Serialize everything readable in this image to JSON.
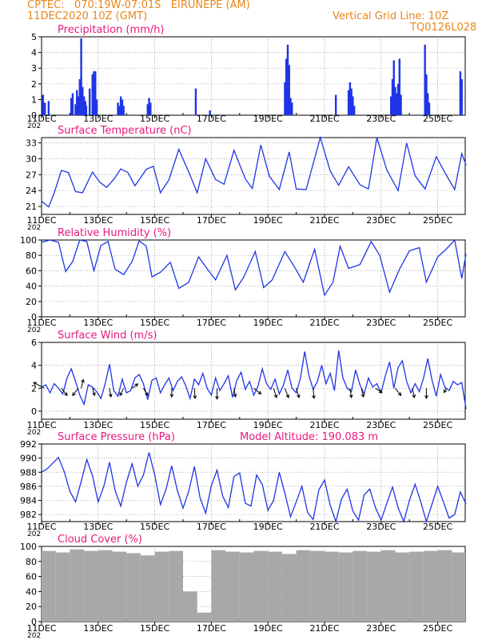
{
  "header": {
    "line1": "CPTEC:   070:19W-07:01S   EIRUNEPE (AM)",
    "line2": "11DEC2020 10Z (GMT)",
    "grid_note": "Vertical Grid Line: 10Z",
    "code": "TQ0126L028"
  },
  "colors": {
    "header": "#e8861a",
    "title": "#e6197d",
    "series": "#1f35e6",
    "cloud": "#a8a8a8",
    "arrow": "#000000"
  },
  "x_ticks": [
    "11DEC",
    "13DEC",
    "15DEC",
    "17DEC",
    "19DEC",
    "21DEC",
    "23DEC",
    "25DEC"
  ],
  "x_axis_stub": "202",
  "chart_data": [
    {
      "type": "bar",
      "title": "Precipitation (mm/h)",
      "ylim": [
        0,
        5
      ],
      "yticks": [
        0,
        1,
        2,
        3,
        4,
        5
      ],
      "x_days": [
        0,
        15
      ],
      "x": [
        0.05,
        0.12,
        0.25,
        1.05,
        1.1,
        1.2,
        1.25,
        1.3,
        1.35,
        1.4,
        1.45,
        1.5,
        1.55,
        1.58,
        1.7,
        1.8,
        1.85,
        1.9,
        1.95,
        2.7,
        2.75,
        2.8,
        2.85,
        2.9,
        3.75,
        3.8,
        3.85,
        5.45,
        5.95,
        8.6,
        8.65,
        8.7,
        8.75,
        8.8,
        8.85,
        10.4,
        10.85,
        10.9,
        10.95,
        11.0,
        11.05,
        12.35,
        12.4,
        12.45,
        12.5,
        12.55,
        12.6,
        12.65,
        12.7,
        13.55,
        13.6,
        13.65,
        13.7,
        14.8,
        14.85
      ],
      "values": [
        1.3,
        0.8,
        0.9,
        1.1,
        1.4,
        0.7,
        1.6,
        1.2,
        2.3,
        4.9,
        1.8,
        1.2,
        0.9,
        0.6,
        1.7,
        2.6,
        2.8,
        2.8,
        1.0,
        0.8,
        0.6,
        1.2,
        1.0,
        0.6,
        0.7,
        1.1,
        0.8,
        1.7,
        0.3,
        2.1,
        3.6,
        4.5,
        3.2,
        1.1,
        0.8,
        1.3,
        1.6,
        2.1,
        1.7,
        1.2,
        0.6,
        1.2,
        2.3,
        3.5,
        1.8,
        1.4,
        2.0,
        3.6,
        1.3,
        4.5,
        2.6,
        1.4,
        0.8,
        2.8,
        2.3
      ]
    },
    {
      "type": "line",
      "title": "Surface Temperature (nC)",
      "ylim": [
        19.5,
        34
      ],
      "yticks": [
        21,
        24,
        27,
        30,
        33
      ],
      "x_days": [
        0,
        15
      ],
      "x": [
        0,
        0.25,
        0.45,
        0.7,
        0.95,
        1.2,
        1.45,
        1.8,
        2.05,
        2.3,
        2.55,
        2.8,
        3.05,
        3.3,
        3.7,
        3.95,
        4.2,
        4.5,
        4.85,
        5.25,
        5.5,
        5.8,
        6.15,
        6.45,
        6.8,
        7.2,
        7.45,
        7.75,
        8.05,
        8.4,
        8.75,
        9.0,
        9.35,
        9.85,
        10.2,
        10.5,
        10.85,
        11.25,
        11.55,
        11.85,
        12.2,
        12.6,
        12.9,
        13.2,
        13.55,
        13.95,
        14.25,
        14.6,
        14.85,
        15.0
      ],
      "values": [
        22.0,
        20.9,
        23.6,
        27.8,
        27.4,
        23.8,
        23.6,
        27.5,
        25.6,
        24.6,
        26.1,
        28.1,
        27.4,
        24.9,
        28.0,
        28.6,
        23.6,
        26.0,
        31.8,
        26.9,
        23.6,
        30.0,
        26.1,
        25.2,
        31.6,
        26.2,
        24.4,
        32.6,
        26.7,
        24.2,
        31.3,
        24.3,
        24.2,
        34.2,
        27.7,
        25.0,
        28.5,
        25.1,
        24.3,
        34.1,
        27.9,
        24.0,
        33.0,
        26.8,
        24.3,
        30.4,
        27.4,
        24.2,
        31.0,
        28.8
      ]
    },
    {
      "type": "line",
      "title": "Relative Humidity (%)",
      "ylim": [
        0,
        100
      ],
      "yticks": [
        0,
        20,
        40,
        60,
        80,
        100
      ],
      "x_days": [
        0,
        15
      ],
      "x": [
        0,
        0.3,
        0.6,
        0.85,
        1.1,
        1.35,
        1.6,
        1.85,
        2.1,
        2.35,
        2.6,
        2.9,
        3.2,
        3.45,
        3.7,
        3.9,
        4.2,
        4.55,
        4.85,
        5.2,
        5.55,
        5.9,
        6.15,
        6.55,
        6.85,
        7.15,
        7.55,
        7.85,
        8.15,
        8.6,
        9.0,
        9.25,
        9.65,
        10.0,
        10.3,
        10.55,
        10.85,
        11.25,
        11.65,
        11.95,
        12.3,
        12.65,
        13.0,
        13.35,
        13.6,
        14.0,
        14.3,
        14.6,
        14.85,
        15.0
      ],
      "values": [
        97,
        100,
        97,
        59,
        72,
        100,
        98,
        60,
        93,
        98,
        62,
        55,
        72,
        99,
        92,
        52,
        58,
        71,
        37,
        45,
        78,
        60,
        48,
        80,
        35,
        52,
        85,
        38,
        48,
        85,
        61,
        45,
        88,
        28,
        45,
        92,
        63,
        68,
        98,
        80,
        32,
        62,
        86,
        90,
        45,
        78,
        88,
        100,
        50,
        82
      ]
    },
    {
      "type": "line",
      "title": "Surface Wind (m/s)",
      "ylim": [
        -0.7,
        6
      ],
      "yticks": [
        0,
        2,
        4,
        6
      ],
      "x_days": [
        0,
        15
      ],
      "x": [
        0,
        0.15,
        0.3,
        0.45,
        0.6,
        0.75,
        0.9,
        1.05,
        1.2,
        1.35,
        1.5,
        1.65,
        1.8,
        1.95,
        2.1,
        2.25,
        2.4,
        2.55,
        2.7,
        2.85,
        3.0,
        3.15,
        3.3,
        3.45,
        3.6,
        3.75,
        3.9,
        4.05,
        4.2,
        4.35,
        4.5,
        4.65,
        4.8,
        4.95,
        5.1,
        5.25,
        5.4,
        5.55,
        5.7,
        5.85,
        6.0,
        6.15,
        6.3,
        6.45,
        6.6,
        6.75,
        6.9,
        7.05,
        7.2,
        7.35,
        7.5,
        7.65,
        7.8,
        7.95,
        8.1,
        8.25,
        8.4,
        8.55,
        8.7,
        8.85,
        9.0,
        9.15,
        9.3,
        9.45,
        9.6,
        9.75,
        9.9,
        10.05,
        10.2,
        10.35,
        10.5,
        10.65,
        10.8,
        10.95,
        11.1,
        11.25,
        11.4,
        11.55,
        11.7,
        11.85,
        12.0,
        12.15,
        12.3,
        12.45,
        12.6,
        12.75,
        12.9,
        13.05,
        13.2,
        13.35,
        13.5,
        13.65,
        13.8,
        13.95,
        14.1,
        14.25,
        14.4,
        14.55,
        14.7,
        14.85,
        15.0
      ],
      "values": [
        2.1,
        2.3,
        1.6,
        2.4,
        2.0,
        1.5,
        2.9,
        3.7,
        2.6,
        1.4,
        0.6,
        2.3,
        2.1,
        1.7,
        1.1,
        2.4,
        4.1,
        1.8,
        1.3,
        2.8,
        1.6,
        1.8,
        2.9,
        3.2,
        2.4,
        1.0,
        2.7,
        2.9,
        1.6,
        2.3,
        2.9,
        1.8,
        2.6,
        3.0,
        2.2,
        1.1,
        2.8,
        2.3,
        3.3,
        2.0,
        1.4,
        2.9,
        1.8,
        2.4,
        3.1,
        1.2,
        2.7,
        3.4,
        1.9,
        2.6,
        1.4,
        2.2,
        3.7,
        2.4,
        1.9,
        2.8,
        1.5,
        2.3,
        3.6,
        2.0,
        1.6,
        2.9,
        5.2,
        3.1,
        1.9,
        2.6,
        4.0,
        2.4,
        3.3,
        1.8,
        5.3,
        2.9,
        2.0,
        1.7,
        3.6,
        2.3,
        1.5,
        2.9,
        2.1,
        2.4,
        1.6,
        3.1,
        4.3,
        2.0,
        3.8,
        4.4,
        2.6,
        1.6,
        2.4,
        1.7,
        2.9,
        4.6,
        2.7,
        1.3,
        3.2,
        2.1,
        1.8,
        2.6,
        2.3,
        2.5,
        0.2
      ],
      "arrows": [
        {
          "day": 0.1,
          "u": -1.5,
          "v": 0.8
        },
        {
          "day": 0.7,
          "u": 0.8,
          "v": -1.0
        },
        {
          "day": 1.3,
          "u": -0.8,
          "v": -1.0
        },
        {
          "day": 1.4,
          "u": 0.3,
          "v": 1.2
        },
        {
          "day": 1.8,
          "u": 0.3,
          "v": -1.0
        },
        {
          "day": 2.4,
          "u": 0.2,
          "v": -1.2
        },
        {
          "day": 2.9,
          "u": -0.5,
          "v": -1.0
        },
        {
          "day": 3.2,
          "u": 0.8,
          "v": 0.6
        },
        {
          "day": 3.6,
          "u": 0.6,
          "v": -1.0
        },
        {
          "day": 4.6,
          "u": 0.0,
          "v": -1.2
        },
        {
          "day": 5.4,
          "u": 0.1,
          "v": -1.4
        },
        {
          "day": 6.2,
          "u": 0.0,
          "v": -1.5
        },
        {
          "day": 6.8,
          "u": 0.2,
          "v": -1.2
        },
        {
          "day": 7.5,
          "u": 1.0,
          "v": -0.8
        },
        {
          "day": 8.2,
          "u": 0.4,
          "v": -1.3
        },
        {
          "day": 8.6,
          "u": 0.5,
          "v": -1.3
        },
        {
          "day": 9.0,
          "u": 0.4,
          "v": -1.3
        },
        {
          "day": 9.6,
          "u": 0.1,
          "v": -1.4
        },
        {
          "day": 10.9,
          "u": 0.2,
          "v": -1.3
        },
        {
          "day": 11.3,
          "u": 0.3,
          "v": -1.2
        },
        {
          "day": 11.8,
          "u": 0.9,
          "v": -0.6
        },
        {
          "day": 12.5,
          "u": 0.8,
          "v": -1.0
        },
        {
          "day": 13.1,
          "u": 0.3,
          "v": -1.3
        },
        {
          "day": 13.6,
          "u": 0.0,
          "v": -1.4
        },
        {
          "day": 14.3,
          "u": -0.3,
          "v": -0.6
        }
      ]
    },
    {
      "type": "line",
      "title": "Surface Pressure (hPa)",
      "annotation": "Model Altitude: 190.083 m",
      "ylim": [
        981,
        992
      ],
      "yticks": [
        982,
        984,
        986,
        988,
        990,
        992
      ],
      "x_days": [
        0,
        15
      ],
      "x": [
        0,
        0.2,
        0.4,
        0.6,
        0.8,
        1.0,
        1.2,
        1.4,
        1.6,
        1.8,
        2.0,
        2.2,
        2.4,
        2.6,
        2.8,
        3.0,
        3.2,
        3.4,
        3.6,
        3.8,
        4.0,
        4.2,
        4.4,
        4.6,
        4.8,
        5.0,
        5.2,
        5.4,
        5.6,
        5.8,
        6.0,
        6.2,
        6.4,
        6.6,
        6.8,
        7.0,
        7.2,
        7.4,
        7.6,
        7.8,
        8.0,
        8.2,
        8.4,
        8.6,
        8.8,
        9.0,
        9.2,
        9.4,
        9.6,
        9.8,
        10.0,
        10.2,
        10.4,
        10.6,
        10.8,
        11.0,
        11.2,
        11.4,
        11.6,
        11.8,
        12.0,
        12.2,
        12.4,
        12.6,
        12.8,
        13.0,
        13.2,
        13.4,
        13.6,
        13.8,
        14.0,
        14.2,
        14.4,
        14.6,
        14.8,
        15.0
      ],
      "values": [
        988.0,
        988.5,
        989.3,
        990.1,
        988.1,
        985.3,
        983.8,
        986.7,
        989.8,
        987.5,
        983.8,
        986.0,
        989.4,
        985.4,
        983.2,
        986.6,
        989.2,
        986.0,
        987.6,
        990.8,
        987.6,
        983.4,
        985.6,
        988.9,
        985.4,
        982.9,
        985.3,
        988.8,
        984.4,
        982.2,
        986.1,
        988.3,
        984.6,
        983.0,
        987.4,
        987.9,
        983.6,
        983.2,
        987.6,
        986.3,
        982.6,
        984.0,
        988.0,
        985.0,
        981.7,
        983.8,
        986.0,
        982.3,
        981.3,
        985.5,
        986.9,
        983.3,
        981.0,
        984.2,
        985.6,
        982.5,
        981.2,
        984.8,
        985.6,
        983.0,
        981.2,
        983.6,
        985.9,
        983.0,
        980.8,
        984.0,
        986.3,
        983.8,
        980.8,
        983.5,
        986.0,
        983.8,
        981.5,
        982.0,
        985.2,
        983.5
      ]
    },
    {
      "type": "bar",
      "title": "Cloud Cover (%)",
      "ylim": [
        0,
        100
      ],
      "yticks": [
        0,
        20,
        40,
        60,
        80,
        100
      ],
      "x_days": [
        0,
        15
      ],
      "x": [
        0,
        0.5,
        1.0,
        1.5,
        2.0,
        2.5,
        3.0,
        3.5,
        4.0,
        4.5,
        5.0,
        5.5,
        6.0,
        6.5,
        7.0,
        7.5,
        8.0,
        8.5,
        9.0,
        9.5,
        10.0,
        10.5,
        11.0,
        11.5,
        12.0,
        12.5,
        13.0,
        13.5,
        14.0,
        14.5
      ],
      "values": [
        94,
        92,
        96,
        94,
        95,
        93,
        91,
        88,
        93,
        94,
        40,
        12,
        95,
        93,
        92,
        94,
        93,
        90,
        95,
        94,
        93,
        92,
        94,
        93,
        95,
        92,
        93,
        94,
        95,
        92
      ]
    }
  ]
}
